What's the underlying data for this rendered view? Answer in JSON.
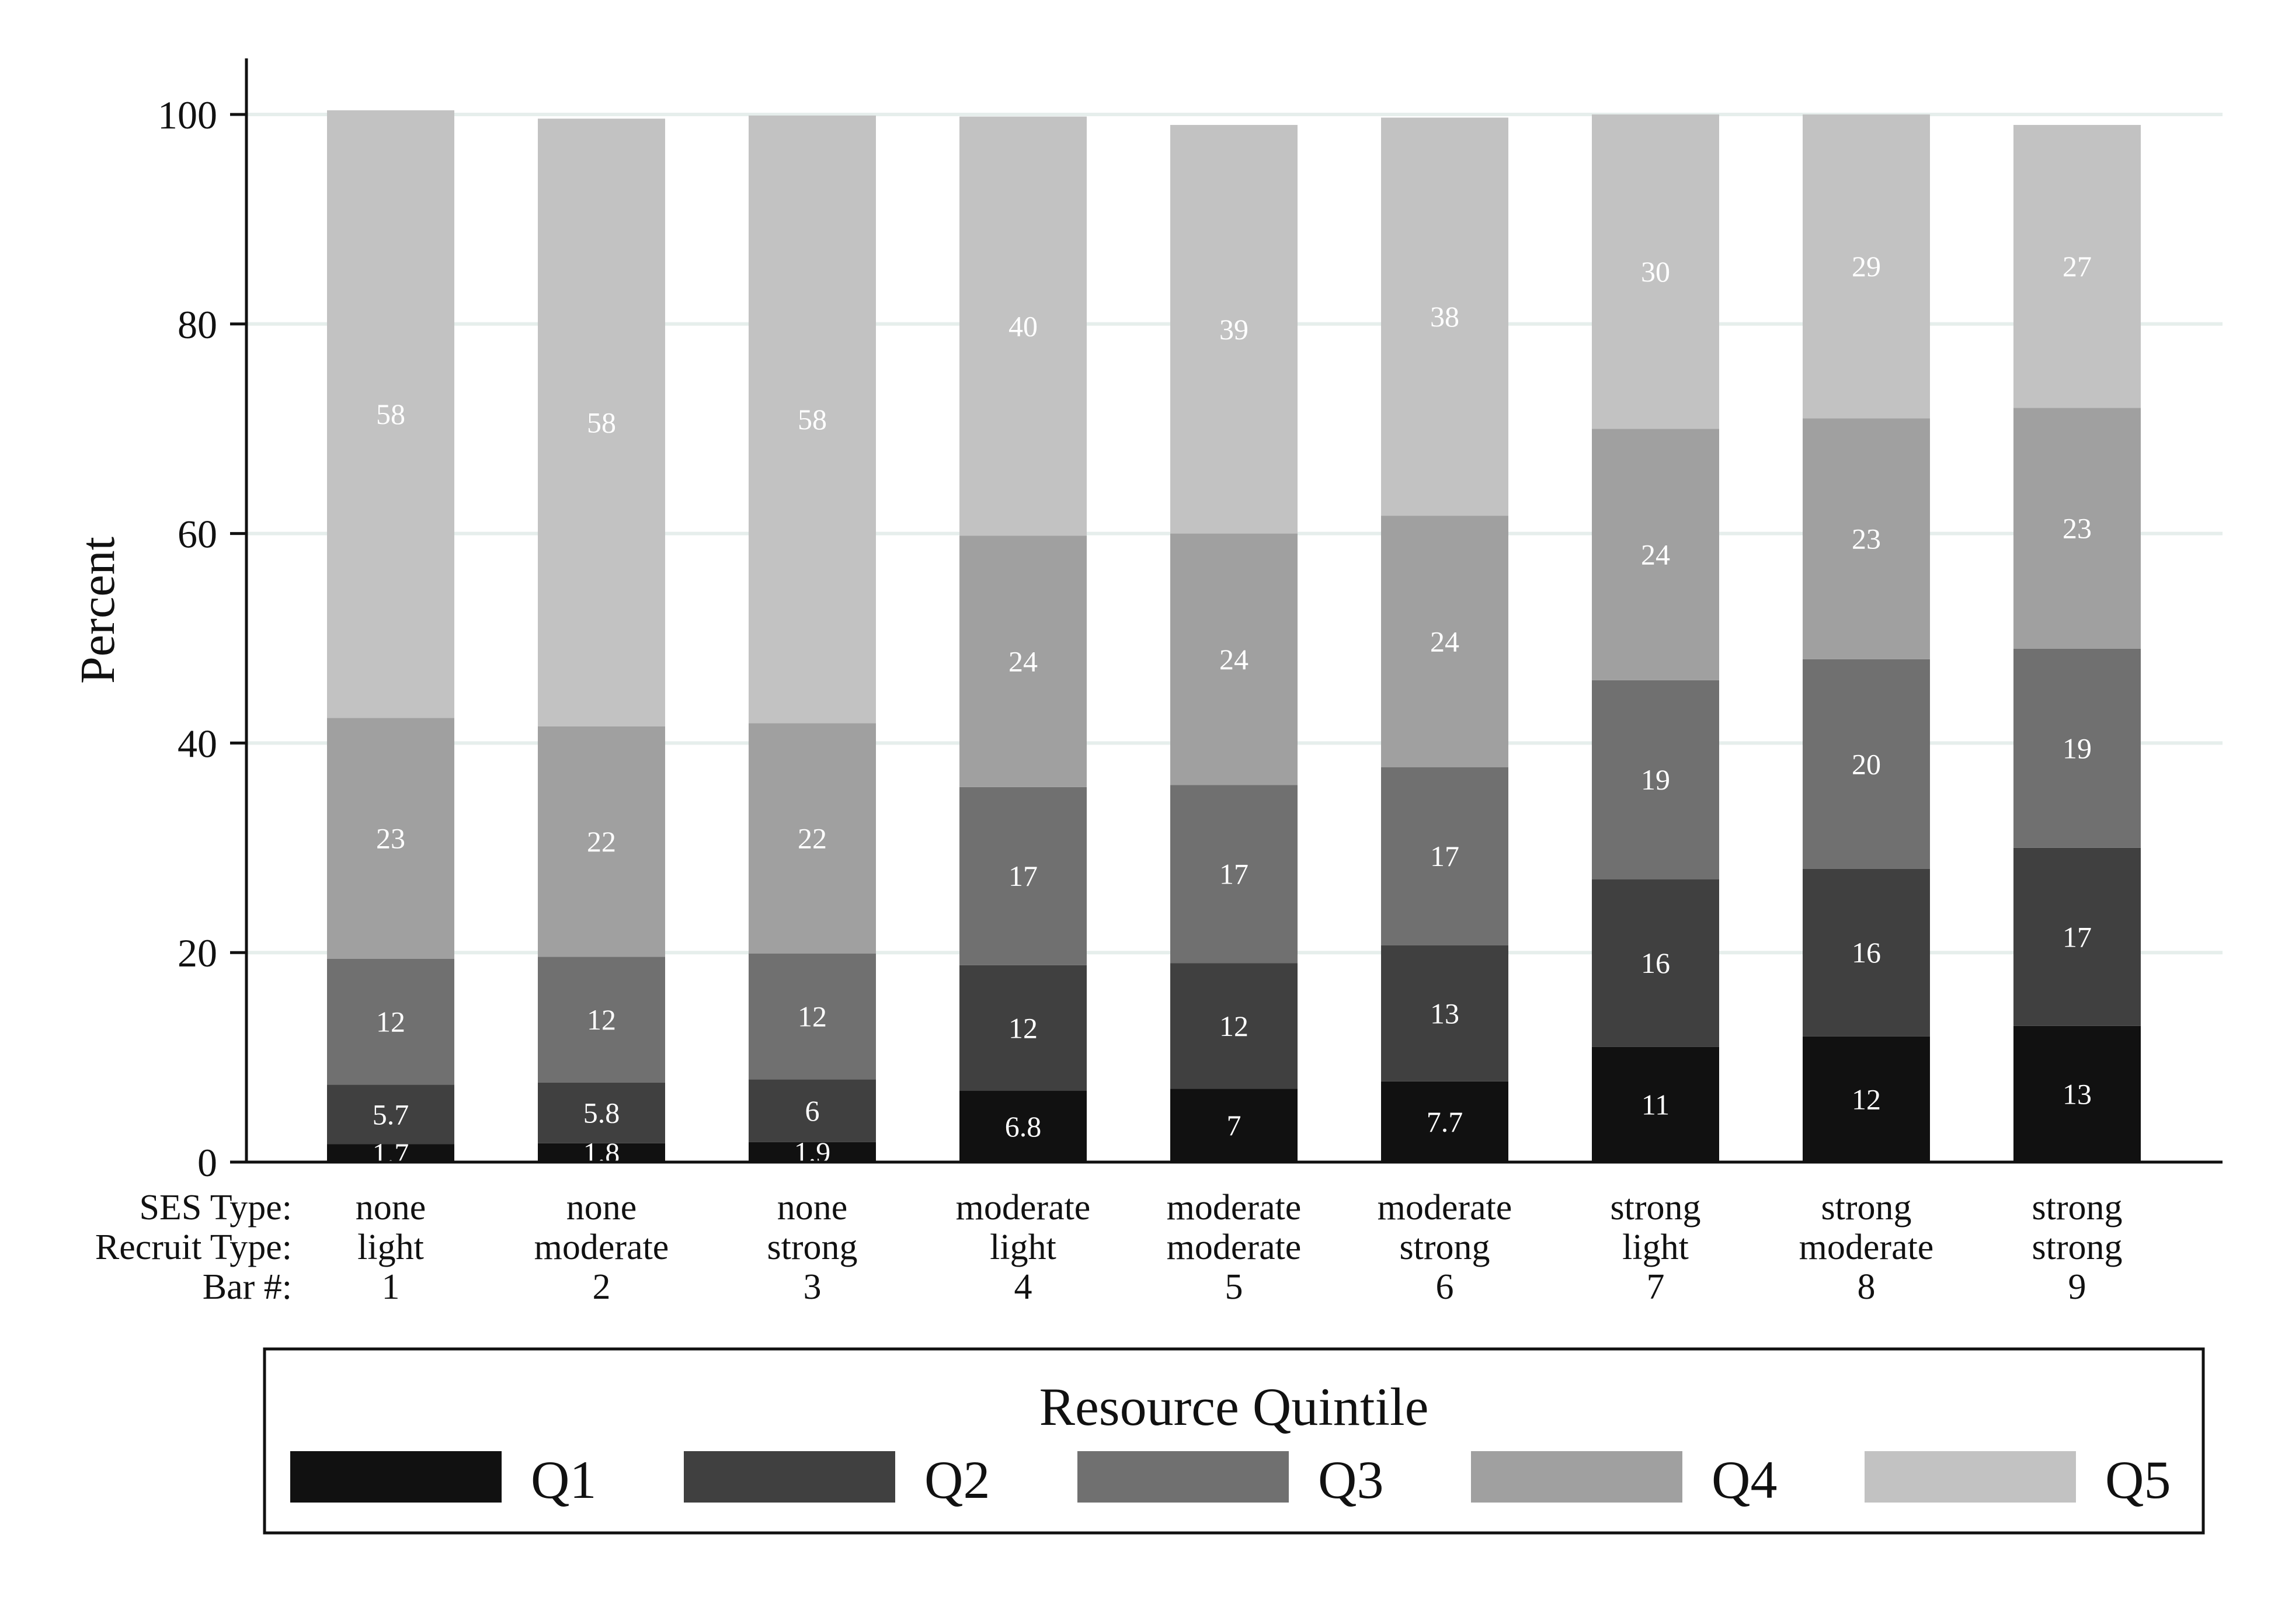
{
  "chart_data": {
    "type": "bar",
    "stacked": true,
    "ylabel": "Percent",
    "ylim": [
      0,
      100
    ],
    "yticks": [
      0,
      20,
      40,
      60,
      80,
      100
    ],
    "grid": true,
    "row_headers": [
      "SES Type:",
      "Recruit Type:",
      "Bar #:"
    ],
    "categories": [
      {
        "ses": "none",
        "recruit": "light",
        "bar": "1"
      },
      {
        "ses": "none",
        "recruit": "moderate",
        "bar": "2"
      },
      {
        "ses": "none",
        "recruit": "strong",
        "bar": "3"
      },
      {
        "ses": "moderate",
        "recruit": "light",
        "bar": "4"
      },
      {
        "ses": "moderate",
        "recruit": "moderate",
        "bar": "5"
      },
      {
        "ses": "moderate",
        "recruit": "strong",
        "bar": "6"
      },
      {
        "ses": "strong",
        "recruit": "light",
        "bar": "7"
      },
      {
        "ses": "strong",
        "recruit": "moderate",
        "bar": "8"
      },
      {
        "ses": "strong",
        "recruit": "strong",
        "bar": "9"
      }
    ],
    "legend_title": "Resource Quintile",
    "legend_position": "bottom",
    "series": [
      {
        "name": "Q1",
        "color": "#111111",
        "values": [
          1.7,
          1.8,
          1.9,
          6.8,
          7,
          7.7,
          11,
          12,
          13
        ],
        "labels": [
          "1.7",
          "1.8",
          "1.9",
          "6.8",
          "7",
          "7.7",
          "11",
          "12",
          "13"
        ]
      },
      {
        "name": "Q2",
        "color": "#404040",
        "values": [
          5.7,
          5.8,
          6,
          12,
          12,
          13,
          16,
          16,
          17
        ],
        "labels": [
          "5.7",
          "5.8",
          "6",
          "12",
          "12",
          "13",
          "16",
          "16",
          "17"
        ]
      },
      {
        "name": "Q3",
        "color": "#707070",
        "values": [
          12,
          12,
          12,
          17,
          17,
          17,
          19,
          20,
          19
        ],
        "labels": [
          "12",
          "12",
          "12",
          "17",
          "17",
          "17",
          "19",
          "20",
          "19"
        ]
      },
      {
        "name": "Q4",
        "color": "#a0a0a0",
        "values": [
          23,
          22,
          22,
          24,
          24,
          24,
          24,
          23,
          23
        ],
        "labels": [
          "23",
          "22",
          "22",
          "24",
          "24",
          "24",
          "24",
          "23",
          "23"
        ]
      },
      {
        "name": "Q5",
        "color": "#c2c2c2",
        "values": [
          58,
          58,
          58,
          40,
          39,
          38,
          30,
          29,
          27
        ],
        "labels": [
          "58",
          "58",
          "58",
          "40",
          "39",
          "38",
          "30",
          "29",
          "27"
        ]
      }
    ]
  }
}
